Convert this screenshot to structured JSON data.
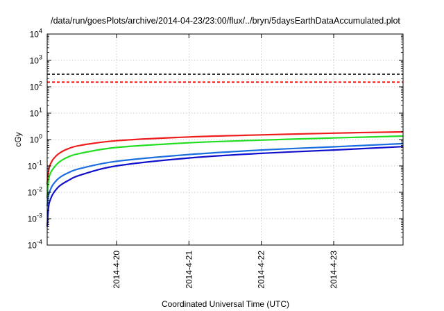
{
  "chart_data": {
    "type": "line",
    "title": "/data/run/goesPlots/archive/2014-04-23/23:00/flux/../bryn/5daysEarthDataAccumulated.plot",
    "xlabel": "Coordinated Universal Time (UTC)",
    "ylabel": "cGy",
    "yscale": "log",
    "ylim": [
      0.0001,
      10000
    ],
    "xlim": [
      "2014-04-19T01:00",
      "2014-04-23T23:00"
    ],
    "x_ticks": [
      {
        "label": "2014-4-20",
        "x": "2014-04-20T00:00"
      },
      {
        "label": "2014-4-21",
        "x": "2014-04-21T00:00"
      },
      {
        "label": "2014-4-22",
        "x": "2014-04-22T00:00"
      },
      {
        "label": "2014-4-23",
        "x": "2014-04-23T00:00"
      }
    ],
    "y_ticks": [
      {
        "base": "10",
        "exp": "-4",
        "value": 0.0001
      },
      {
        "base": "10",
        "exp": "-3",
        "value": 0.001
      },
      {
        "base": "10",
        "exp": "-2",
        "value": 0.01
      },
      {
        "base": "10",
        "exp": "-1",
        "value": 0.1
      },
      {
        "base": "10",
        "exp": "0",
        "value": 1
      },
      {
        "base": "10",
        "exp": "1",
        "value": 10
      },
      {
        "base": "10",
        "exp": "2",
        "value": 100
      },
      {
        "base": "10",
        "exp": "3",
        "value": 1000
      },
      {
        "base": "10",
        "exp": "4",
        "value": 10000
      }
    ],
    "grid": true,
    "reference_lines": [
      {
        "y": 300,
        "color": "#000000",
        "dash": "dashed"
      },
      {
        "y": 150,
        "color": "#ff0000",
        "dash": "dashed"
      }
    ],
    "series": [
      {
        "color": "#ee1c1c",
        "x": [
          "2014-04-19T01:00",
          "2014-04-19T01:30",
          "2014-04-19T02:00",
          "2014-04-19T03:00",
          "2014-04-19T05:00",
          "2014-04-19T08:00",
          "2014-04-19T12:00",
          "2014-04-20T00:00",
          "2014-04-21T00:00",
          "2014-04-22T00:00",
          "2014-04-23T00:00",
          "2014-04-23T23:00"
        ],
        "y": [
          0.02,
          0.07,
          0.11,
          0.18,
          0.3,
          0.45,
          0.6,
          0.9,
          1.25,
          1.5,
          1.75,
          1.95
        ]
      },
      {
        "color": "#22dd22",
        "x": [
          "2014-04-19T01:00",
          "2014-04-19T01:30",
          "2014-04-19T02:00",
          "2014-04-19T03:00",
          "2014-04-19T05:00",
          "2014-04-19T08:00",
          "2014-04-19T12:00",
          "2014-04-20T00:00",
          "2014-04-21T00:00",
          "2014-04-22T00:00",
          "2014-04-23T00:00",
          "2014-04-23T23:00"
        ],
        "y": [
          0.006,
          0.03,
          0.05,
          0.08,
          0.14,
          0.22,
          0.3,
          0.5,
          0.75,
          0.95,
          1.15,
          1.35
        ]
      },
      {
        "color": "#1a6ee0",
        "x": [
          "2014-04-19T01:00",
          "2014-04-19T01:30",
          "2014-04-19T02:00",
          "2014-04-19T03:00",
          "2014-04-19T05:00",
          "2014-04-19T08:00",
          "2014-04-19T12:00",
          "2014-04-20T00:00",
          "2014-04-21T00:00",
          "2014-04-22T00:00",
          "2014-04-23T00:00",
          "2014-04-23T23:00"
        ],
        "y": [
          0.003,
          0.008,
          0.012,
          0.02,
          0.035,
          0.055,
          0.08,
          0.15,
          0.27,
          0.4,
          0.53,
          0.7
        ]
      },
      {
        "color": "#1010cc",
        "x": [
          "2014-04-19T01:00",
          "2014-04-19T01:30",
          "2014-04-19T02:00",
          "2014-04-19T03:00",
          "2014-04-19T05:00",
          "2014-04-19T08:00",
          "2014-04-19T12:00",
          "2014-04-20T00:00",
          "2014-04-21T00:00",
          "2014-04-22T00:00",
          "2014-04-23T00:00",
          "2014-04-23T23:00"
        ],
        "y": [
          0.0005,
          0.003,
          0.005,
          0.009,
          0.017,
          0.028,
          0.045,
          0.1,
          0.2,
          0.3,
          0.4,
          0.54
        ]
      }
    ]
  }
}
